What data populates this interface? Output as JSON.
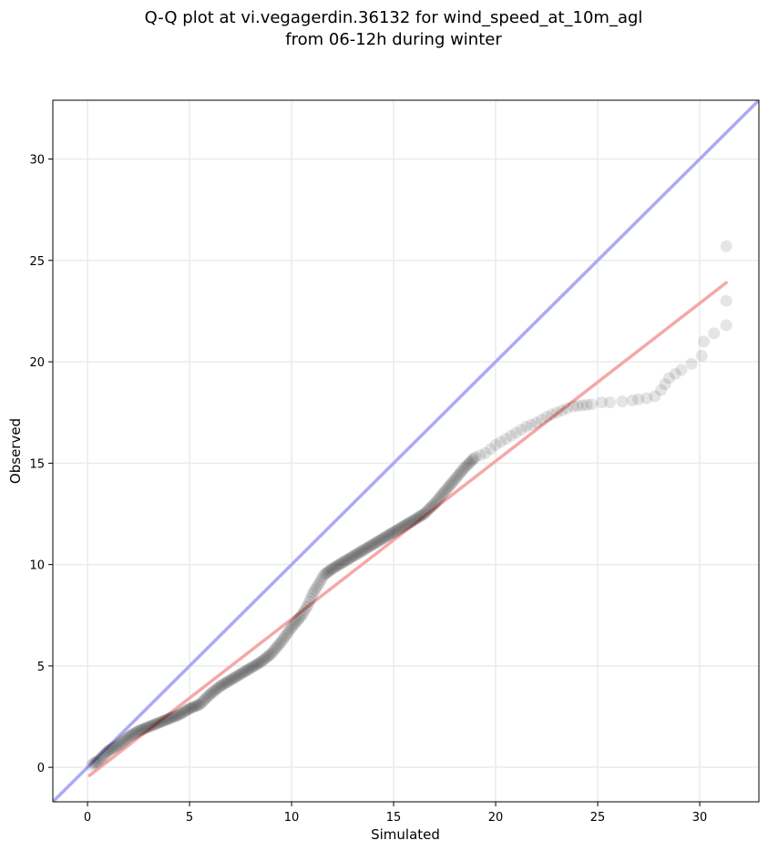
{
  "chart_data": {
    "type": "scatter",
    "title": "Q-Q plot at vi.vegagerdin.36132 for wind_speed_at_10m_agl",
    "subtitle": "from 06-12h during winter",
    "xlabel": "Simulated",
    "ylabel": "Observed",
    "xlim": [
      -1.7,
      32.9
    ],
    "ylim": [
      -1.7,
      32.9
    ],
    "xticks": [
      "0",
      "5",
      "10",
      "15",
      "20",
      "25",
      "30"
    ],
    "yticks": [
      "0",
      "5",
      "10",
      "15",
      "20",
      "25",
      "30"
    ],
    "grid": true,
    "legend": "none",
    "identity_line": {
      "from": [
        -1.7,
        -1.7
      ],
      "to": [
        32.9,
        32.9
      ],
      "color": "#aaaaf5"
    },
    "fit_line": {
      "from": [
        0.1,
        -0.4
      ],
      "to": [
        31.3,
        23.9
      ],
      "color": "#f5a8a8"
    },
    "marker_color": "#000000",
    "series": [
      {
        "points": [
          [
            0.2,
            0.1
          ],
          [
            0.3,
            0.2
          ],
          [
            0.5,
            0.3
          ],
          [
            0.8,
            0.6
          ],
          [
            1.0,
            0.8
          ],
          [
            1.5,
            1.1
          ],
          [
            2.0,
            1.5
          ],
          [
            2.5,
            1.8
          ],
          [
            3.0,
            2.0
          ],
          [
            3.5,
            2.2
          ],
          [
            4.0,
            2.4
          ],
          [
            4.5,
            2.6
          ],
          [
            5.0,
            2.9
          ],
          [
            5.5,
            3.1
          ],
          [
            6.0,
            3.6
          ],
          [
            6.5,
            4.0
          ],
          [
            7.0,
            4.3
          ],
          [
            7.5,
            4.6
          ],
          [
            8.0,
            4.9
          ],
          [
            8.5,
            5.2
          ],
          [
            9.0,
            5.6
          ],
          [
            9.5,
            6.2
          ],
          [
            10.0,
            6.9
          ],
          [
            10.5,
            7.5
          ],
          [
            10.8,
            8.0
          ],
          [
            11.0,
            8.5
          ],
          [
            11.3,
            9.0
          ],
          [
            11.6,
            9.5
          ],
          [
            12.0,
            9.8
          ],
          [
            12.5,
            10.1
          ],
          [
            13.0,
            10.4
          ],
          [
            13.5,
            10.7
          ],
          [
            14.0,
            11.0
          ],
          [
            14.5,
            11.3
          ],
          [
            15.0,
            11.6
          ],
          [
            15.5,
            11.9
          ],
          [
            16.0,
            12.2
          ],
          [
            16.5,
            12.5
          ],
          [
            17.0,
            13.0
          ],
          [
            17.5,
            13.6
          ],
          [
            18.0,
            14.2
          ],
          [
            18.5,
            14.8
          ],
          [
            19.0,
            15.3
          ],
          [
            19.5,
            15.5
          ],
          [
            20.0,
            15.9
          ],
          [
            20.5,
            16.2
          ],
          [
            21.0,
            16.5
          ],
          [
            21.5,
            16.8
          ],
          [
            22.0,
            17.0
          ],
          [
            22.5,
            17.3
          ],
          [
            23.0,
            17.5
          ],
          [
            23.5,
            17.7
          ],
          [
            23.8,
            17.8
          ],
          [
            24.7,
            17.9
          ],
          [
            25.2,
            18.0
          ],
          [
            25.6,
            18.0
          ],
          [
            26.2,
            18.05
          ],
          [
            26.7,
            18.1
          ],
          [
            27.0,
            18.15
          ],
          [
            27.4,
            18.2
          ],
          [
            27.8,
            18.3
          ],
          [
            28.1,
            18.6
          ],
          [
            28.3,
            18.9
          ],
          [
            28.5,
            19.2
          ],
          [
            28.8,
            19.4
          ],
          [
            29.1,
            19.6
          ],
          [
            29.6,
            19.9
          ],
          [
            30.1,
            20.3
          ],
          [
            30.2,
            21.0
          ],
          [
            30.7,
            21.4
          ],
          [
            31.3,
            21.8
          ],
          [
            31.3,
            23.0
          ],
          [
            31.3,
            25.7
          ]
        ]
      }
    ]
  }
}
